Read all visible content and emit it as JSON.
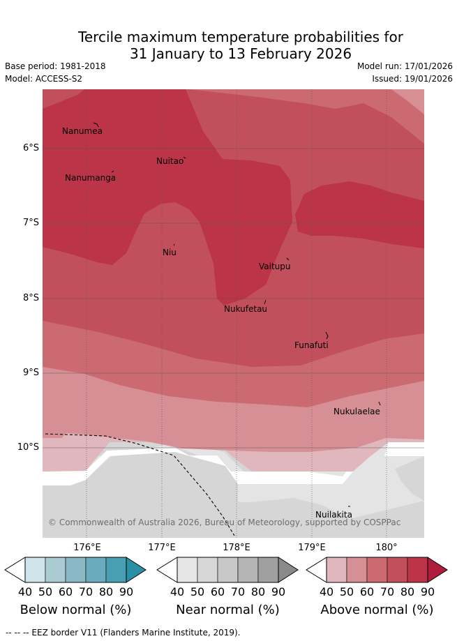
{
  "title": {
    "line1": "Tercile maximum temperature probabilities for",
    "line2": "31 January to 13 February 2026"
  },
  "meta": {
    "base_period": "Base period: 1981-2018",
    "model": "Model: ACCESS-S2",
    "model_run": "Model run: 17/01/2026",
    "issued": "Issued: 19/01/2026"
  },
  "axes": {
    "lat_labels": [
      "6°S",
      "7°S",
      "8°S",
      "9°S",
      "10°S"
    ],
    "lon_labels": [
      "176°E",
      "177°E",
      "178°E",
      "179°E",
      "180°"
    ]
  },
  "islands": [
    "Nanumea",
    "Nuitao",
    "Nanumanga",
    "Niu",
    "Vaitupu",
    "Nukufetau",
    "Funafuti",
    "Nukulaelae",
    "Nuilakita"
  ],
  "copyright": "© Commonwealth of Australia 2026, Bureau of Meteorology, supported by COSPPac",
  "legend": {
    "below": {
      "title": "Below normal (%)",
      "ticks": [
        "40",
        "50",
        "60",
        "70",
        "80",
        "90"
      ],
      "colors": [
        "#cfe5ea",
        "#a9cbd1",
        "#8ab8c5",
        "#6aacbd",
        "#489fb3",
        "#2a8ea5"
      ]
    },
    "near": {
      "title": "Near normal (%)",
      "ticks": [
        "40",
        "50",
        "60",
        "70",
        "80",
        "90"
      ],
      "colors": [
        "#e6e6e6",
        "#d7d7d7",
        "#c8c8c8",
        "#b4b4b4",
        "#a0a0a0",
        "#8a8a8a"
      ]
    },
    "above": {
      "title": "Above normal (%)",
      "ticks": [
        "40",
        "50",
        "60",
        "70",
        "80",
        "90"
      ],
      "colors": [
        "#e0b7bc",
        "#d78f96",
        "#cc6a72",
        "#c2505c",
        "#bb3448",
        "#b01c3c"
      ]
    }
  },
  "footer": "--  --  -- EEZ border V11 (Flanders Marine Institute, 2019)."
}
